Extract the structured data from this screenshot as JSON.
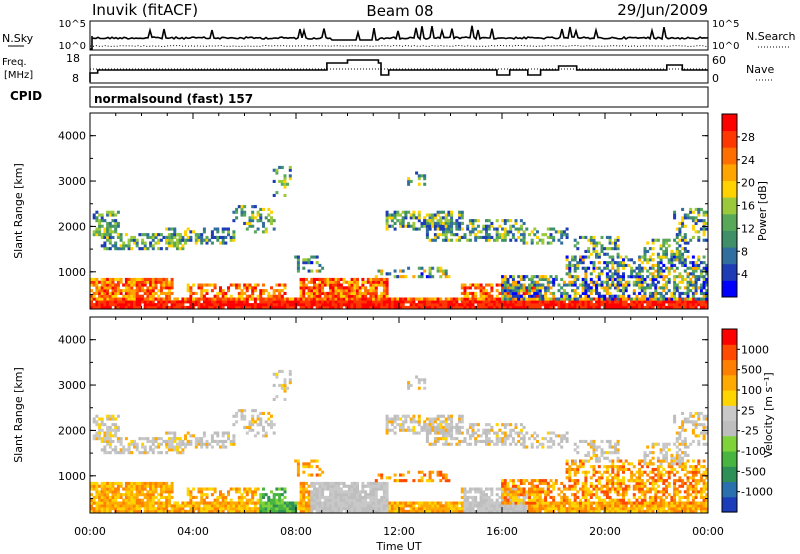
{
  "header": {
    "station": "Inuvik (fitACF)",
    "beam": "Beam 08",
    "date": "29/Jun/2009"
  },
  "top_panel": {
    "left_label": "N.Sky",
    "right_label": "N.Search",
    "tick_hi": "10^5",
    "tick_lo": "10^0"
  },
  "freq_panel": {
    "left_label_1": "Freq.",
    "left_label_2": "[MHz]",
    "right_label": "Nave",
    "left_ticks": [
      "18",
      "8"
    ],
    "right_ticks": [
      "60",
      "0"
    ]
  },
  "cpid": {
    "label": "CPID",
    "value": "normalsound (fast) 157"
  },
  "chart_data": [
    {
      "type": "heatmap",
      "title": "",
      "ylabel": "Slant Range [km]",
      "xlabel": "",
      "ylim": [
        180,
        4500
      ],
      "yticks": [
        "1000",
        "2000",
        "3000",
        "4000"
      ],
      "colorbar": {
        "label": "Power [dB]",
        "ticks": [
          "28",
          "24",
          "20",
          "16",
          "12",
          "8",
          "4"
        ],
        "colors": [
          "#0000ff",
          "#1e3cb4",
          "#2f6e9e",
          "#3f9068",
          "#58a85a",
          "#9ac93c",
          "#ffd200",
          "#ffa500",
          "#ff6e00",
          "#ff3700",
          "#ff0000"
        ]
      }
    },
    {
      "type": "heatmap",
      "title": "",
      "ylabel": "Slant Range [km]",
      "xlabel": "Time UT",
      "ylim": [
        180,
        4500
      ],
      "yticks": [
        "1000",
        "2000",
        "3000",
        "4000"
      ],
      "colorbar": {
        "label": "Velocity [m s⁻¹]",
        "ticks": [
          "1000",
          "500",
          "100",
          "25",
          "-25",
          "-100",
          "-500",
          "-1000"
        ],
        "colors": [
          "#1b3db9",
          "#2a6fae",
          "#2e8f57",
          "#49b541",
          "#7fd33a",
          "#bebebe",
          "#c8c8c8",
          "#ffd500",
          "#ffaa00",
          "#ff8000",
          "#ff4a00",
          "#ff0000"
        ]
      }
    }
  ],
  "xaxis": {
    "ticks": [
      "00:00",
      "04:00",
      "08:00",
      "12:00",
      "16:00",
      "20:00",
      "00:00"
    ],
    "label": "Time UT"
  }
}
